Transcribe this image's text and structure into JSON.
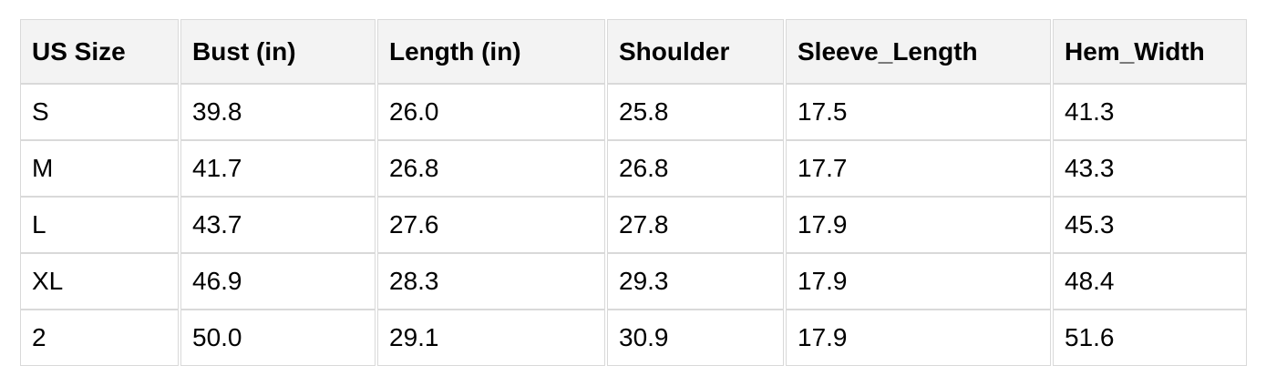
{
  "table": {
    "title": "size-chart",
    "headers": [
      "US Size",
      "Bust (in)",
      "Length (in)",
      "Shoulder",
      "Sleeve_Length",
      "Hem_Width"
    ],
    "rows": [
      {
        "cells": [
          "S",
          "39.8",
          "26.0",
          "25.8",
          "17.5",
          "41.3"
        ]
      },
      {
        "cells": [
          "M",
          "41.7",
          "26.8",
          "26.8",
          "17.7",
          "43.3"
        ]
      },
      {
        "cells": [
          "L",
          "43.7",
          "27.6",
          "27.8",
          "17.9",
          "45.3"
        ]
      },
      {
        "cells": [
          "XL",
          "46.9",
          "28.3",
          "29.3",
          "17.9",
          "48.4"
        ]
      },
      {
        "cells": [
          "2",
          "50.0",
          "29.1",
          "30.9",
          "17.9",
          "51.6"
        ]
      }
    ],
    "colors": {
      "header_background": "#f3f3f3",
      "border": "#d9d9d9",
      "text": "#000000",
      "page_background": "#ffffff"
    }
  }
}
